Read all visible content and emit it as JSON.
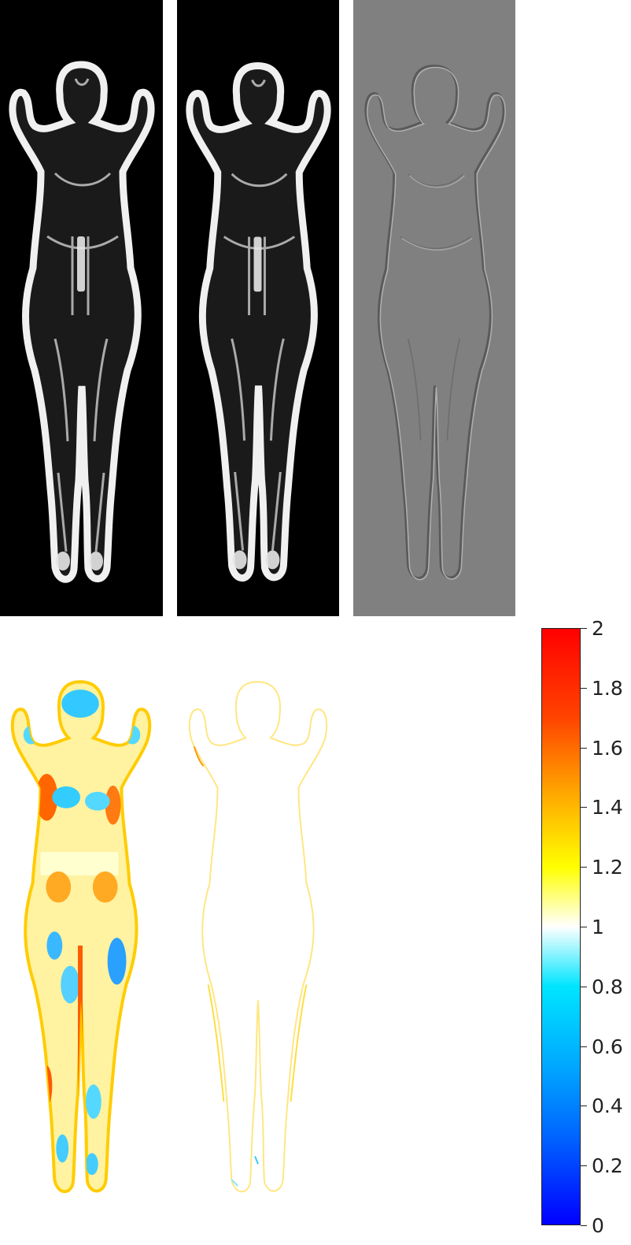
{
  "panels": {
    "fixed": "fixed-image",
    "warped": "warped-image",
    "difference": "difference-image",
    "jacobian_a": "jacobian-map-a",
    "jacobian_b": "jacobian-map-b"
  },
  "colorbar": {
    "min": 0,
    "max": 2,
    "ticks": [
      "2",
      "1.8",
      "1.6",
      "1.4",
      "1.2",
      "1",
      "0.8",
      "0.6",
      "0.4",
      "0.2",
      "0"
    ],
    "colors": {
      "low": "#0000ff",
      "mid_low": "#00e5ff",
      "mid": "#ffffff",
      "mid_high": "#ffff00",
      "high": "#ff0000"
    }
  }
}
